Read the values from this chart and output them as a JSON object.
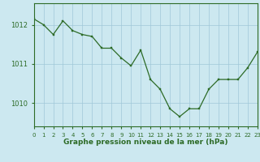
{
  "x": [
    0,
    1,
    2,
    3,
    4,
    5,
    6,
    7,
    8,
    9,
    10,
    11,
    12,
    13,
    14,
    15,
    16,
    17,
    18,
    19,
    20,
    21,
    22,
    23
  ],
  "y": [
    1012.15,
    1012.0,
    1011.75,
    1012.1,
    1011.85,
    1011.75,
    1011.7,
    1011.4,
    1011.4,
    1011.15,
    1010.95,
    1011.35,
    1010.6,
    1010.35,
    1009.85,
    1009.65,
    1009.85,
    1009.85,
    1010.35,
    1010.6,
    1010.6,
    1010.6,
    1010.9,
    1011.3
  ],
  "line_color": "#2d6b27",
  "marker_color": "#2d6b27",
  "bg_color": "#cce8f0",
  "grid_color": "#a0c8d8",
  "title": "Graphe pression niveau de la mer (hPa)",
  "yticks": [
    1010,
    1011,
    1012
  ],
  "xticks": [
    0,
    1,
    2,
    3,
    4,
    5,
    6,
    7,
    8,
    9,
    10,
    11,
    12,
    13,
    14,
    15,
    16,
    17,
    18,
    19,
    20,
    21,
    22,
    23
  ],
  "xlim": [
    0,
    23
  ],
  "ylim": [
    1009.4,
    1012.55
  ],
  "tick_label_color": "#2d6b27",
  "spine_color": "#2d6b27",
  "title_fontsize": 6.5,
  "xtick_fontsize": 5.0,
  "ytick_fontsize": 6.0,
  "linewidth": 0.9,
  "markersize": 2.0
}
